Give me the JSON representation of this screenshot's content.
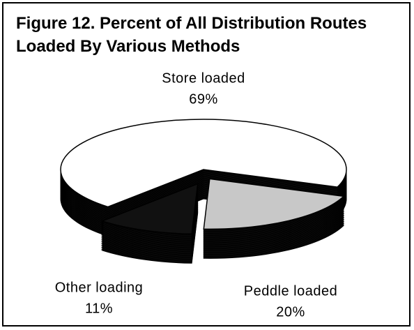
{
  "chart_data": {
    "type": "pie",
    "title": "Figure 12.  Percent of All Distribution Routes Loaded By Various Methods",
    "categories": [
      "Store loaded",
      "Peddle loaded",
      "Other loading"
    ],
    "values": [
      69,
      20,
      11
    ],
    "value_labels": [
      "69%",
      "20%",
      "11%"
    ],
    "colors": [
      "#ffffff",
      "#c8c8c8",
      "#111111"
    ]
  }
}
